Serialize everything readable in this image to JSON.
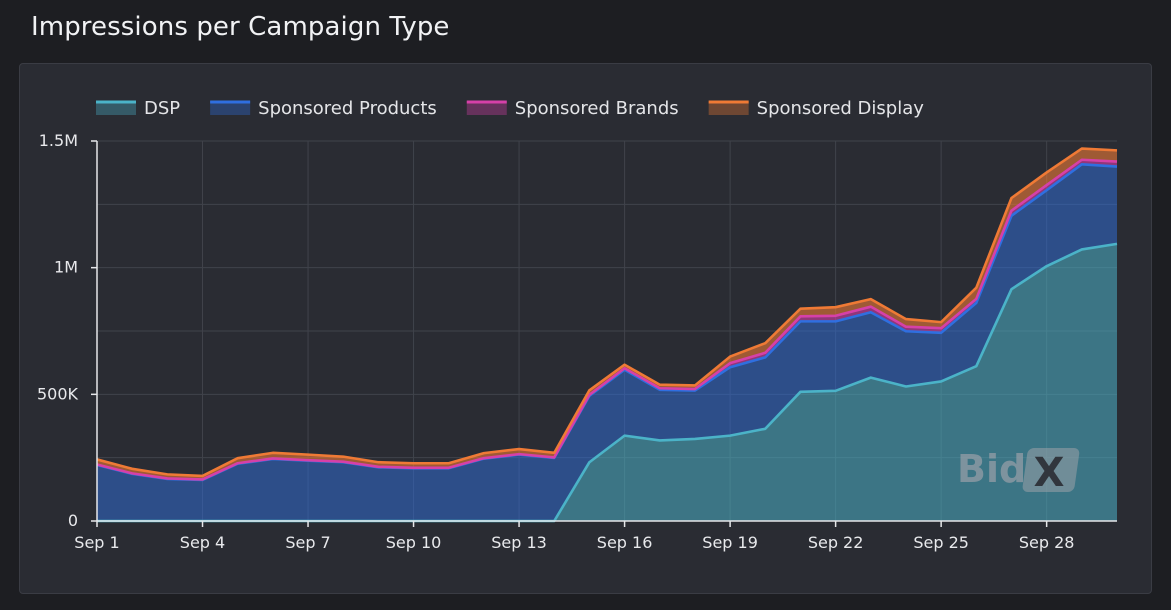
{
  "page_title": "Impressions per Campaign Type",
  "watermark": {
    "text": "Bid",
    "mark": "X"
  },
  "colors": {
    "DSP": "#4bb3c8",
    "Sponsored Products": "#2f6fe0",
    "Sponsored Brands": "#d640a8",
    "Sponsored Display": "#ef7a35"
  },
  "chart_data": {
    "type": "area",
    "stacked": true,
    "title": "Impressions per Campaign Type",
    "xlabel": "",
    "ylabel": "",
    "ylim": [
      0,
      1500000
    ],
    "grid": true,
    "legend_position": "top-left",
    "x": [
      "Sep 1",
      "Sep 2",
      "Sep 3",
      "Sep 4",
      "Sep 5",
      "Sep 6",
      "Sep 7",
      "Sep 8",
      "Sep 9",
      "Sep 10",
      "Sep 11",
      "Sep 12",
      "Sep 13",
      "Sep 14",
      "Sep 15",
      "Sep 16",
      "Sep 17",
      "Sep 18",
      "Sep 19",
      "Sep 20",
      "Sep 21",
      "Sep 22",
      "Sep 23",
      "Sep 24",
      "Sep 25",
      "Sep 26",
      "Sep 27",
      "Sep 28",
      "Sep 29",
      "Sep 30"
    ],
    "x_tick_labels": [
      "Sep 1",
      "Sep 4",
      "Sep 7",
      "Sep 10",
      "Sep 13",
      "Sep 16",
      "Sep 19",
      "Sep 22",
      "Sep 25",
      "Sep 28"
    ],
    "y_tick_labels": [
      "0",
      "500K",
      "1M",
      "1.5M"
    ],
    "y_tick_values": [
      0,
      500000,
      1000000,
      1500000
    ],
    "series": [
      {
        "name": "DSP",
        "values": [
          0,
          0,
          0,
          0,
          0,
          0,
          0,
          0,
          0,
          0,
          0,
          0,
          0,
          0,
          232000,
          337000,
          318000,
          324000,
          337000,
          364000,
          510000,
          514000,
          566000,
          531000,
          551000,
          611000,
          915000,
          1006000,
          1072000,
          1094000
        ]
      },
      {
        "name": "Sponsored Products",
        "values": [
          221000,
          186000,
          166000,
          162000,
          226000,
          245000,
          238000,
          232000,
          212000,
          208000,
          208000,
          246000,
          262000,
          249000,
          262000,
          260000,
          200000,
          191000,
          270000,
          282000,
          278000,
          274000,
          258000,
          218000,
          192000,
          250000,
          290000,
          300000,
          336000,
          305000
        ]
      },
      {
        "name": "Sponsored Brands",
        "values": [
          2000,
          2000,
          2000,
          2000,
          2000,
          2000,
          2000,
          2000,
          2000,
          2000,
          2000,
          2000,
          2000,
          2000,
          4000,
          6000,
          6000,
          6000,
          16000,
          18000,
          20000,
          22000,
          22000,
          18000,
          18000,
          16000,
          20000,
          20000,
          18000,
          20000
        ]
      },
      {
        "name": "Sponsored Display",
        "values": [
          20000,
          18000,
          16000,
          14000,
          20000,
          22000,
          22000,
          20000,
          18000,
          18000,
          18000,
          20000,
          20000,
          18000,
          18000,
          14000,
          14000,
          14000,
          26000,
          38000,
          30000,
          34000,
          30000,
          30000,
          24000,
          44000,
          50000,
          50000,
          44000,
          44000
        ]
      }
    ]
  }
}
